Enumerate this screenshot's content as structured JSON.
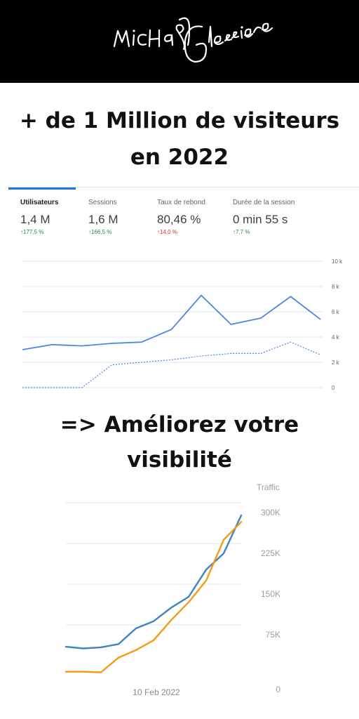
{
  "header": {
    "background": "#000000",
    "signature_text": "Michael Glessiere"
  },
  "headline1": {
    "line1": "+ de 1 Million de visiteurs",
    "line2": "en 2022"
  },
  "headline2": {
    "line1": "=> Améliorez votre",
    "line2": "visibilité"
  },
  "analytics": {
    "metrics": [
      {
        "label": "Utilisateurs",
        "value": "1,4 M",
        "change": "↑177,5 %",
        "trend": "up"
      },
      {
        "label": "Sessions",
        "value": "1,6 M",
        "change": "↑166,5 %",
        "trend": "up"
      },
      {
        "label": "Taux de rebond",
        "value": "80,46 %",
        "change": "↑14,0 %",
        "trend": "down"
      },
      {
        "label": "Durée de la session",
        "value": "0 min 55 s",
        "change": "↑7,7 %",
        "trend": "up"
      }
    ],
    "accent": "#1a73e8"
  },
  "chart_data": [
    {
      "type": "line",
      "title": "",
      "xlabel": "",
      "ylabel": "",
      "ylim": [
        0,
        10000
      ],
      "y_ticks": [
        "10 k",
        "8 k",
        "6 k",
        "4 k",
        "2 k",
        "0"
      ],
      "y_tick_values": [
        10000,
        8000,
        6000,
        4000,
        2000,
        0
      ],
      "grid": true,
      "x": [
        0,
        10,
        20,
        30,
        40,
        50,
        60,
        70,
        80,
        90,
        100
      ],
      "series": [
        {
          "style": "solid",
          "color": "#4a86e8",
          "values": [
            3000,
            3400,
            3300,
            3500,
            3600,
            4600,
            7300,
            5000,
            5500,
            7200,
            5400
          ]
        },
        {
          "style": "dotted",
          "color": "#4a86e8",
          "values": [
            0,
            0,
            0,
            1800,
            2000,
            2200,
            2500,
            2700,
            2700,
            3600,
            2600
          ]
        }
      ]
    },
    {
      "type": "line",
      "title": "",
      "ylabel": "Traffic",
      "ylim": [
        0,
        300000
      ],
      "y_ticks": [
        "300K",
        "225K",
        "150K",
        "75K",
        "0"
      ],
      "y_tick_values": [
        300000,
        225000,
        150000,
        75000,
        0
      ],
      "x_ticks": [
        "10 Feb 2022"
      ],
      "grid": true,
      "x": [
        0,
        10,
        20,
        30,
        40,
        50,
        60,
        70,
        80,
        90,
        100
      ],
      "series": [
        {
          "color": "#3d85c6",
          "values": [
            58000,
            55000,
            57000,
            63000,
            92000,
            105000,
            130000,
            150000,
            200000,
            230000,
            300000
          ]
        },
        {
          "color": "#f39c12",
          "values": [
            12000,
            12000,
            11000,
            38000,
            52000,
            70000,
            107000,
            140000,
            180000,
            255000,
            288000
          ]
        }
      ]
    }
  ]
}
